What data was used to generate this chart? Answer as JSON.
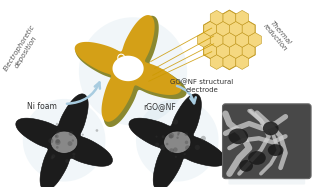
{
  "bg_color": "#ffffff",
  "left_label": "Electrophoretic\ndeposition",
  "right_label": "Thermal\nreduction",
  "center_label": "GO@NF structural\nelectrode",
  "bottom_left_label": "Ni foam",
  "bottom_mid_label": "rGO@NF",
  "arrow_color": "#a8cce0",
  "text_color": "#555555",
  "go_yellow": "#d4a017",
  "go_olive": "#8a8830",
  "go_yellow2": "#c8920a",
  "hex_fill": "#e8c060",
  "hex_edge": "#c09820",
  "hex_inner_fill": "#f5d880",
  "circle_color": "#c8dde8",
  "circle_alpha": 0.25,
  "foam_dark": "#1c1c1c",
  "foam_hole": "#b0b0b0",
  "sem_bg": "#404040",
  "sem_fiber": "#cccccc",
  "connector_color": "#cc9900"
}
